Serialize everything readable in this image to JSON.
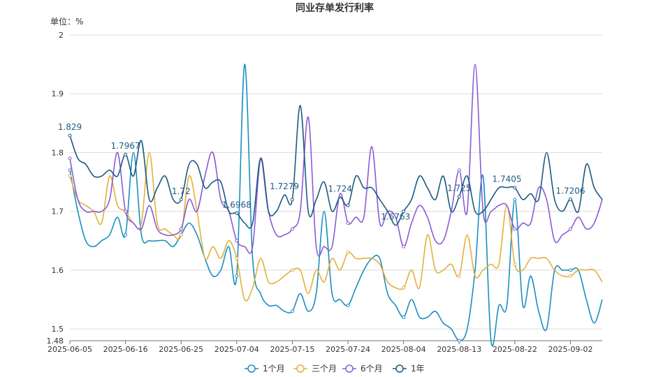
{
  "chart_data": {
    "type": "line",
    "title": "同业存单发行利率",
    "unit_label": "单位：%",
    "ylim": [
      1.48,
      2.0
    ],
    "y_ticks": [
      1.48,
      1.5,
      1.6,
      1.7,
      1.8,
      1.9,
      2.0
    ],
    "y_tick_labels": [
      "1.48",
      "1.5",
      "1.6",
      "1.7",
      "1.8",
      "1.9",
      "2"
    ],
    "x_tick_labels": [
      "2025-06-05",
      "2025-06-16",
      "2025-06-25",
      "2025-07-04",
      "2025-07-15",
      "2025-07-24",
      "2025-08-04",
      "2025-08-13",
      "2025-08-22",
      "2025-09-02"
    ],
    "x_tick_index": [
      0,
      7,
      14,
      21,
      28,
      35,
      42,
      49,
      56,
      63
    ],
    "n_points": 68,
    "grid": true,
    "legend_position": "bottom-center",
    "series": [
      {
        "name": "1个月",
        "color": "#1a8fc0",
        "values": [
          1.77,
          1.7,
          1.65,
          1.64,
          1.65,
          1.66,
          1.69,
          1.66,
          1.8,
          1.66,
          1.65,
          1.65,
          1.65,
          1.64,
          1.66,
          1.68,
          1.66,
          1.62,
          1.59,
          1.6,
          1.64,
          1.59,
          1.95,
          1.62,
          1.56,
          1.54,
          1.54,
          1.53,
          1.53,
          1.56,
          1.53,
          1.56,
          1.7,
          1.56,
          1.55,
          1.54,
          1.57,
          1.6,
          1.62,
          1.62,
          1.56,
          1.54,
          1.52,
          1.55,
          1.52,
          1.52,
          1.53,
          1.51,
          1.5,
          1.48,
          1.5,
          1.6,
          1.76,
          1.48,
          1.54,
          1.54,
          1.72,
          1.54,
          1.59,
          1.53,
          1.5,
          1.6,
          1.6,
          1.6,
          1.6,
          1.55,
          1.51,
          1.55
        ]
      },
      {
        "name": "三个月",
        "color": "#e1b13c",
        "values": [
          1.76,
          1.72,
          1.71,
          1.7,
          1.68,
          1.76,
          1.71,
          1.7,
          1.68,
          1.68,
          1.8,
          1.68,
          1.67,
          1.66,
          1.66,
          1.76,
          1.7,
          1.62,
          1.64,
          1.62,
          1.65,
          1.62,
          1.55,
          1.57,
          1.62,
          1.58,
          1.58,
          1.59,
          1.6,
          1.6,
          1.56,
          1.6,
          1.58,
          1.62,
          1.6,
          1.63,
          1.62,
          1.62,
          1.62,
          1.61,
          1.58,
          1.57,
          1.57,
          1.6,
          1.57,
          1.66,
          1.6,
          1.6,
          1.61,
          1.59,
          1.66,
          1.59,
          1.6,
          1.61,
          1.61,
          1.71,
          1.61,
          1.6,
          1.62,
          1.62,
          1.62,
          1.6,
          1.59,
          1.59,
          1.6,
          1.6,
          1.6,
          1.58
        ]
      },
      {
        "name": "6个月",
        "color": "#8b5bd6",
        "values": [
          1.79,
          1.72,
          1.7,
          1.7,
          1.7,
          1.72,
          1.8,
          1.7,
          1.68,
          1.67,
          1.71,
          1.67,
          1.66,
          1.66,
          1.67,
          1.72,
          1.7,
          1.76,
          1.8,
          1.72,
          1.7,
          1.65,
          1.64,
          1.64,
          1.79,
          1.7,
          1.66,
          1.66,
          1.67,
          1.7,
          1.86,
          1.64,
          1.64,
          1.64,
          1.73,
          1.68,
          1.69,
          1.69,
          1.81,
          1.68,
          1.7,
          1.69,
          1.64,
          1.68,
          1.71,
          1.69,
          1.65,
          1.65,
          1.7,
          1.77,
          1.7,
          1.95,
          1.7,
          1.7,
          1.71,
          1.71,
          1.67,
          1.68,
          1.68,
          1.74,
          1.72,
          1.65,
          1.66,
          1.67,
          1.69,
          1.67,
          1.68,
          1.72
        ]
      },
      {
        "name": "1年",
        "color": "#1c5a82",
        "values": [
          1.829,
          1.79,
          1.78,
          1.76,
          1.76,
          1.77,
          1.76,
          1.7967,
          1.76,
          1.82,
          1.72,
          1.74,
          1.76,
          1.72,
          1.72,
          1.78,
          1.78,
          1.74,
          1.75,
          1.75,
          1.7,
          1.6968,
          1.68,
          1.68,
          1.79,
          1.7,
          1.7,
          1.7279,
          1.72,
          1.88,
          1.7,
          1.72,
          1.75,
          1.7,
          1.724,
          1.71,
          1.76,
          1.74,
          1.74,
          1.72,
          1.7,
          1.6763,
          1.7,
          1.72,
          1.76,
          1.74,
          1.72,
          1.76,
          1.7,
          1.725,
          1.76,
          1.7,
          1.7,
          1.72,
          1.74,
          1.7405,
          1.74,
          1.72,
          1.73,
          1.72,
          1.8,
          1.72,
          1.7,
          1.7206,
          1.7,
          1.78,
          1.74,
          1.72
        ]
      }
    ],
    "annotations": [
      {
        "series": 3,
        "index": 0,
        "label": "1.829"
      },
      {
        "series": 3,
        "index": 7,
        "label": "1.7967"
      },
      {
        "series": 3,
        "index": 14,
        "label": "1.72"
      },
      {
        "series": 3,
        "index": 21,
        "label": "1.6968"
      },
      {
        "series": 3,
        "index": 27,
        "label": "1.7279"
      },
      {
        "series": 3,
        "index": 34,
        "label": "1.724"
      },
      {
        "series": 3,
        "index": 41,
        "label": "1.6763"
      },
      {
        "series": 3,
        "index": 49,
        "label": "1.725"
      },
      {
        "series": 3,
        "index": 55,
        "label": "1.7405"
      },
      {
        "series": 3,
        "index": 63,
        "label": "1.7206"
      }
    ]
  }
}
